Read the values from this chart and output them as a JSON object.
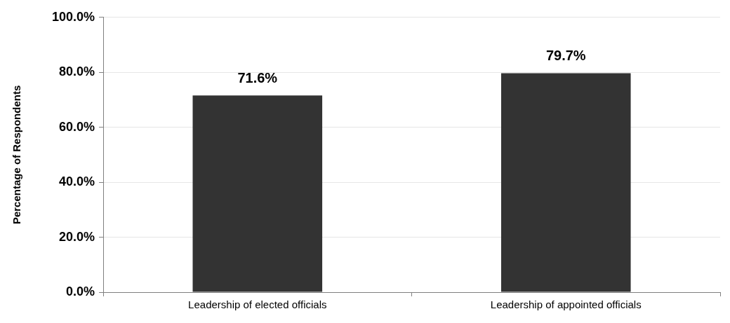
{
  "chart_data": {
    "type": "bar",
    "ylabel": "Percentage of Respondents",
    "categories": [
      "Leadership of elected officials",
      "Leadership of appointed officials"
    ],
    "values": [
      71.6,
      79.7
    ],
    "value_labels": [
      "71.6%",
      "79.7%"
    ],
    "color": "#333333",
    "ylim": [
      0,
      100
    ],
    "yticks": [
      {
        "value": 0,
        "label": "0.0%"
      },
      {
        "value": 20,
        "label": "20.0%"
      },
      {
        "value": 40,
        "label": "40.0%"
      },
      {
        "value": 60,
        "label": "60.0%"
      },
      {
        "value": 80,
        "label": "80.0%"
      },
      {
        "value": 100,
        "label": "100.0%"
      }
    ],
    "grid": "y",
    "legend": false
  }
}
